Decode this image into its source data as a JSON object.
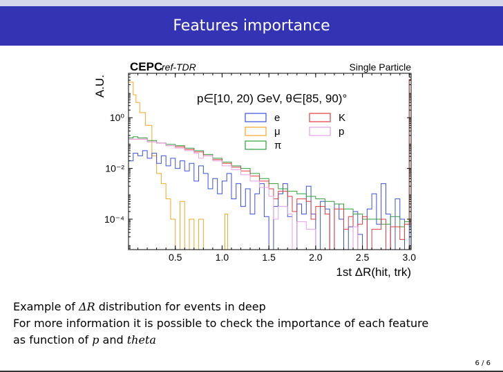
{
  "slide": {
    "title": "Features importance",
    "lines": [
      "Example of ",
      " distribution for events in deep",
      "For more information it is possible to check the importance of each feature",
      "as function of ",
      " and "
    ],
    "math": {
      "delta_r": "ΔR",
      "p": "p",
      "theta": "theta"
    },
    "page": "6 / 6"
  },
  "chart_data": {
    "type": "histogram",
    "label_cepc": "CEPC",
    "label_reftdr": "ref-TDR",
    "label_single": "Single Particle",
    "annotation": "p∈[10, 20) GeV, θ∈[85, 90)°",
    "ylabel": "A.U.",
    "xlabel": "1st ΔR(hit, trk)",
    "xlim": [
      0,
      3.02
    ],
    "ylim_log10": [
      -5.2,
      1.75
    ],
    "yscale": "log",
    "x_ticks": [
      0.5,
      1.0,
      1.5,
      2.0,
      2.5,
      3.0
    ],
    "x_tick_labels": [
      "0.5",
      "1.0",
      "1.5",
      "2.0",
      "2.5",
      "3.0"
    ],
    "y_ticks_log10": [
      0,
      -2,
      -4
    ],
    "y_tick_labels": [
      "10⁰",
      "10⁻²",
      "10⁻⁴"
    ],
    "colors": {
      "e": "#3a4fdc",
      "mu": "#f5a623",
      "pi": "#2e9e3a",
      "K": "#e03a3a",
      "p": "#e6a1e6"
    },
    "legend": [
      {
        "key": "e",
        "label": "e"
      },
      {
        "key": "K",
        "label": "K"
      },
      {
        "key": "mu",
        "label": "μ"
      },
      {
        "key": "p",
        "label": "p"
      },
      {
        "key": "pi",
        "label": "π"
      }
    ],
    "series": [
      {
        "key": "mu",
        "points": [
          [
            0.0,
            1.4
          ],
          [
            0.05,
            0.9
          ],
          [
            0.08,
            0.6
          ],
          [
            0.12,
            0.2
          ],
          [
            0.18,
            -0.3
          ],
          [
            0.25,
            -1.5
          ],
          [
            0.3,
            -2.2
          ],
          [
            0.35,
            -2.6
          ],
          [
            0.4,
            -3.2
          ],
          [
            0.45,
            -4.0
          ],
          [
            0.5,
            -5.2
          ],
          [
            0.55,
            -3.3
          ],
          [
            0.6,
            -5.2
          ],
          [
            0.65,
            -4.0
          ],
          [
            0.7,
            -5.2
          ],
          [
            0.75,
            -4.0
          ],
          [
            0.8,
            -5.2
          ],
          [
            1.0,
            -5.2
          ],
          [
            1.03,
            -3.8
          ],
          [
            1.06,
            -5.2
          ],
          [
            3.02,
            -5.2
          ]
        ]
      },
      {
        "key": "e",
        "points": [
          [
            0.0,
            -1.7
          ],
          [
            0.05,
            -1.4
          ],
          [
            0.1,
            -1.5
          ],
          [
            0.15,
            -1.3
          ],
          [
            0.2,
            -1.6
          ],
          [
            0.25,
            -1.4
          ],
          [
            0.3,
            -1.8
          ],
          [
            0.35,
            -1.5
          ],
          [
            0.4,
            -1.9
          ],
          [
            0.45,
            -1.6
          ],
          [
            0.5,
            -2.0
          ],
          [
            0.55,
            -1.7
          ],
          [
            0.6,
            -2.1
          ],
          [
            0.65,
            -1.8
          ],
          [
            0.7,
            -2.5
          ],
          [
            0.75,
            -1.9
          ],
          [
            0.8,
            -2.2
          ],
          [
            0.85,
            -2.8
          ],
          [
            0.9,
            -2.4
          ],
          [
            0.95,
            -3.0
          ],
          [
            1.0,
            -2.5
          ],
          [
            1.05,
            -2.2
          ],
          [
            1.1,
            -3.2
          ],
          [
            1.15,
            -2.6
          ],
          [
            1.2,
            -3.5
          ],
          [
            1.25,
            -2.8
          ],
          [
            1.3,
            -3.8
          ],
          [
            1.35,
            -3.0
          ],
          [
            1.4,
            -2.6
          ],
          [
            1.45,
            -3.9
          ],
          [
            1.5,
            -5.2
          ],
          [
            1.55,
            -3.5
          ],
          [
            1.6,
            -3.0
          ],
          [
            1.65,
            -2.6
          ],
          [
            1.7,
            -3.9
          ],
          [
            1.75,
            -5.2
          ],
          [
            1.8,
            -3.4
          ],
          [
            1.85,
            -3.8
          ],
          [
            1.9,
            -2.7
          ],
          [
            1.95,
            -3.8
          ],
          [
            2.0,
            -5.2
          ],
          [
            2.05,
            -3.3
          ],
          [
            2.1,
            -3.6
          ],
          [
            2.15,
            -5.2
          ],
          [
            2.2,
            -3.4
          ],
          [
            2.25,
            -4.0
          ],
          [
            2.3,
            -5.2
          ],
          [
            2.35,
            -4.3
          ],
          [
            2.4,
            -3.7
          ],
          [
            2.45,
            -4.6
          ],
          [
            2.5,
            -5.2
          ],
          [
            2.55,
            -3.6
          ],
          [
            2.6,
            -3.0
          ],
          [
            2.65,
            -4.2
          ],
          [
            2.7,
            -2.6
          ],
          [
            2.75,
            -3.8
          ],
          [
            2.8,
            -5.2
          ],
          [
            2.85,
            -3.2
          ],
          [
            2.9,
            -4.0
          ],
          [
            2.95,
            -5.2
          ],
          [
            3.0,
            1.5
          ],
          [
            3.02,
            -5.2
          ]
        ]
      },
      {
        "key": "pi",
        "points": [
          [
            0.0,
            -0.8
          ],
          [
            0.05,
            -0.75
          ],
          [
            0.1,
            -0.8
          ],
          [
            0.2,
            -0.9
          ],
          [
            0.3,
            -1.0
          ],
          [
            0.4,
            -1.05
          ],
          [
            0.5,
            -1.1
          ],
          [
            0.6,
            -1.2
          ],
          [
            0.7,
            -1.3
          ],
          [
            0.8,
            -1.45
          ],
          [
            0.9,
            -1.6
          ],
          [
            1.0,
            -1.75
          ],
          [
            1.1,
            -1.9
          ],
          [
            1.2,
            -2.0
          ],
          [
            1.3,
            -2.2
          ],
          [
            1.4,
            -2.4
          ],
          [
            1.5,
            -2.6
          ],
          [
            1.6,
            -2.8
          ],
          [
            1.7,
            -2.9
          ],
          [
            1.8,
            -3.0
          ],
          [
            1.9,
            -3.1
          ],
          [
            2.0,
            -3.2
          ],
          [
            2.1,
            -3.3
          ],
          [
            2.2,
            -3.4
          ],
          [
            2.3,
            -3.6
          ],
          [
            2.4,
            -3.8
          ],
          [
            2.5,
            -4.0
          ],
          [
            2.6,
            -4.0
          ],
          [
            2.7,
            -4.2
          ],
          [
            2.8,
            -3.9
          ],
          [
            2.9,
            -4.3
          ],
          [
            2.95,
            -4.1
          ],
          [
            3.0,
            1.5
          ],
          [
            3.02,
            -5.2
          ]
        ]
      },
      {
        "key": "K",
        "points": [
          [
            0.0,
            -0.85
          ],
          [
            0.1,
            -0.85
          ],
          [
            0.2,
            -0.95
          ],
          [
            0.3,
            -1.0
          ],
          [
            0.4,
            -1.1
          ],
          [
            0.5,
            -1.15
          ],
          [
            0.6,
            -1.25
          ],
          [
            0.7,
            -1.35
          ],
          [
            0.8,
            -1.5
          ],
          [
            0.9,
            -1.65
          ],
          [
            1.0,
            -1.8
          ],
          [
            1.1,
            -1.95
          ],
          [
            1.2,
            -2.1
          ],
          [
            1.3,
            -2.3
          ],
          [
            1.4,
            -2.5
          ],
          [
            1.5,
            -2.8
          ],
          [
            1.55,
            -3.2
          ],
          [
            1.6,
            -2.9
          ],
          [
            1.7,
            -3.1
          ],
          [
            1.75,
            -3.7
          ],
          [
            1.8,
            -3.2
          ],
          [
            1.9,
            -3.3
          ],
          [
            1.95,
            -4.0
          ],
          [
            2.0,
            -3.5
          ],
          [
            2.1,
            -3.8
          ],
          [
            2.15,
            -5.2
          ],
          [
            2.2,
            -3.6
          ],
          [
            2.3,
            -4.4
          ],
          [
            2.35,
            -3.9
          ],
          [
            2.4,
            -5.2
          ],
          [
            2.45,
            -4.2
          ],
          [
            2.5,
            -3.9
          ],
          [
            2.55,
            -5.2
          ],
          [
            2.6,
            -4.4
          ],
          [
            2.7,
            -4.0
          ],
          [
            2.75,
            -5.2
          ],
          [
            2.8,
            -4.3
          ],
          [
            2.9,
            -4.8
          ],
          [
            2.95,
            -4.2
          ],
          [
            3.0,
            1.5
          ],
          [
            3.02,
            -5.2
          ]
        ]
      },
      {
        "key": "p",
        "points": [
          [
            0.0,
            -0.85
          ],
          [
            0.1,
            -0.85
          ],
          [
            0.2,
            -0.95
          ],
          [
            0.3,
            -1.0
          ],
          [
            0.4,
            -1.1
          ],
          [
            0.5,
            -1.2
          ],
          [
            0.6,
            -1.3
          ],
          [
            0.7,
            -1.4
          ],
          [
            0.75,
            -1.6
          ],
          [
            0.8,
            -1.5
          ],
          [
            0.9,
            -1.7
          ],
          [
            1.0,
            -1.9
          ],
          [
            1.1,
            -2.05
          ],
          [
            1.2,
            -2.25
          ],
          [
            1.3,
            -2.5
          ],
          [
            1.4,
            -2.75
          ],
          [
            1.5,
            -3.1
          ],
          [
            1.55,
            -4.0
          ],
          [
            1.6,
            -3.5
          ],
          [
            1.7,
            -3.8
          ],
          [
            1.75,
            -5.2
          ],
          [
            1.8,
            -4.1
          ],
          [
            1.9,
            -4.4
          ],
          [
            2.0,
            -5.2
          ],
          [
            2.3,
            -5.2
          ],
          [
            2.4,
            -4.3
          ],
          [
            2.45,
            -5.2
          ],
          [
            3.02,
            -5.2
          ]
        ]
      }
    ]
  }
}
